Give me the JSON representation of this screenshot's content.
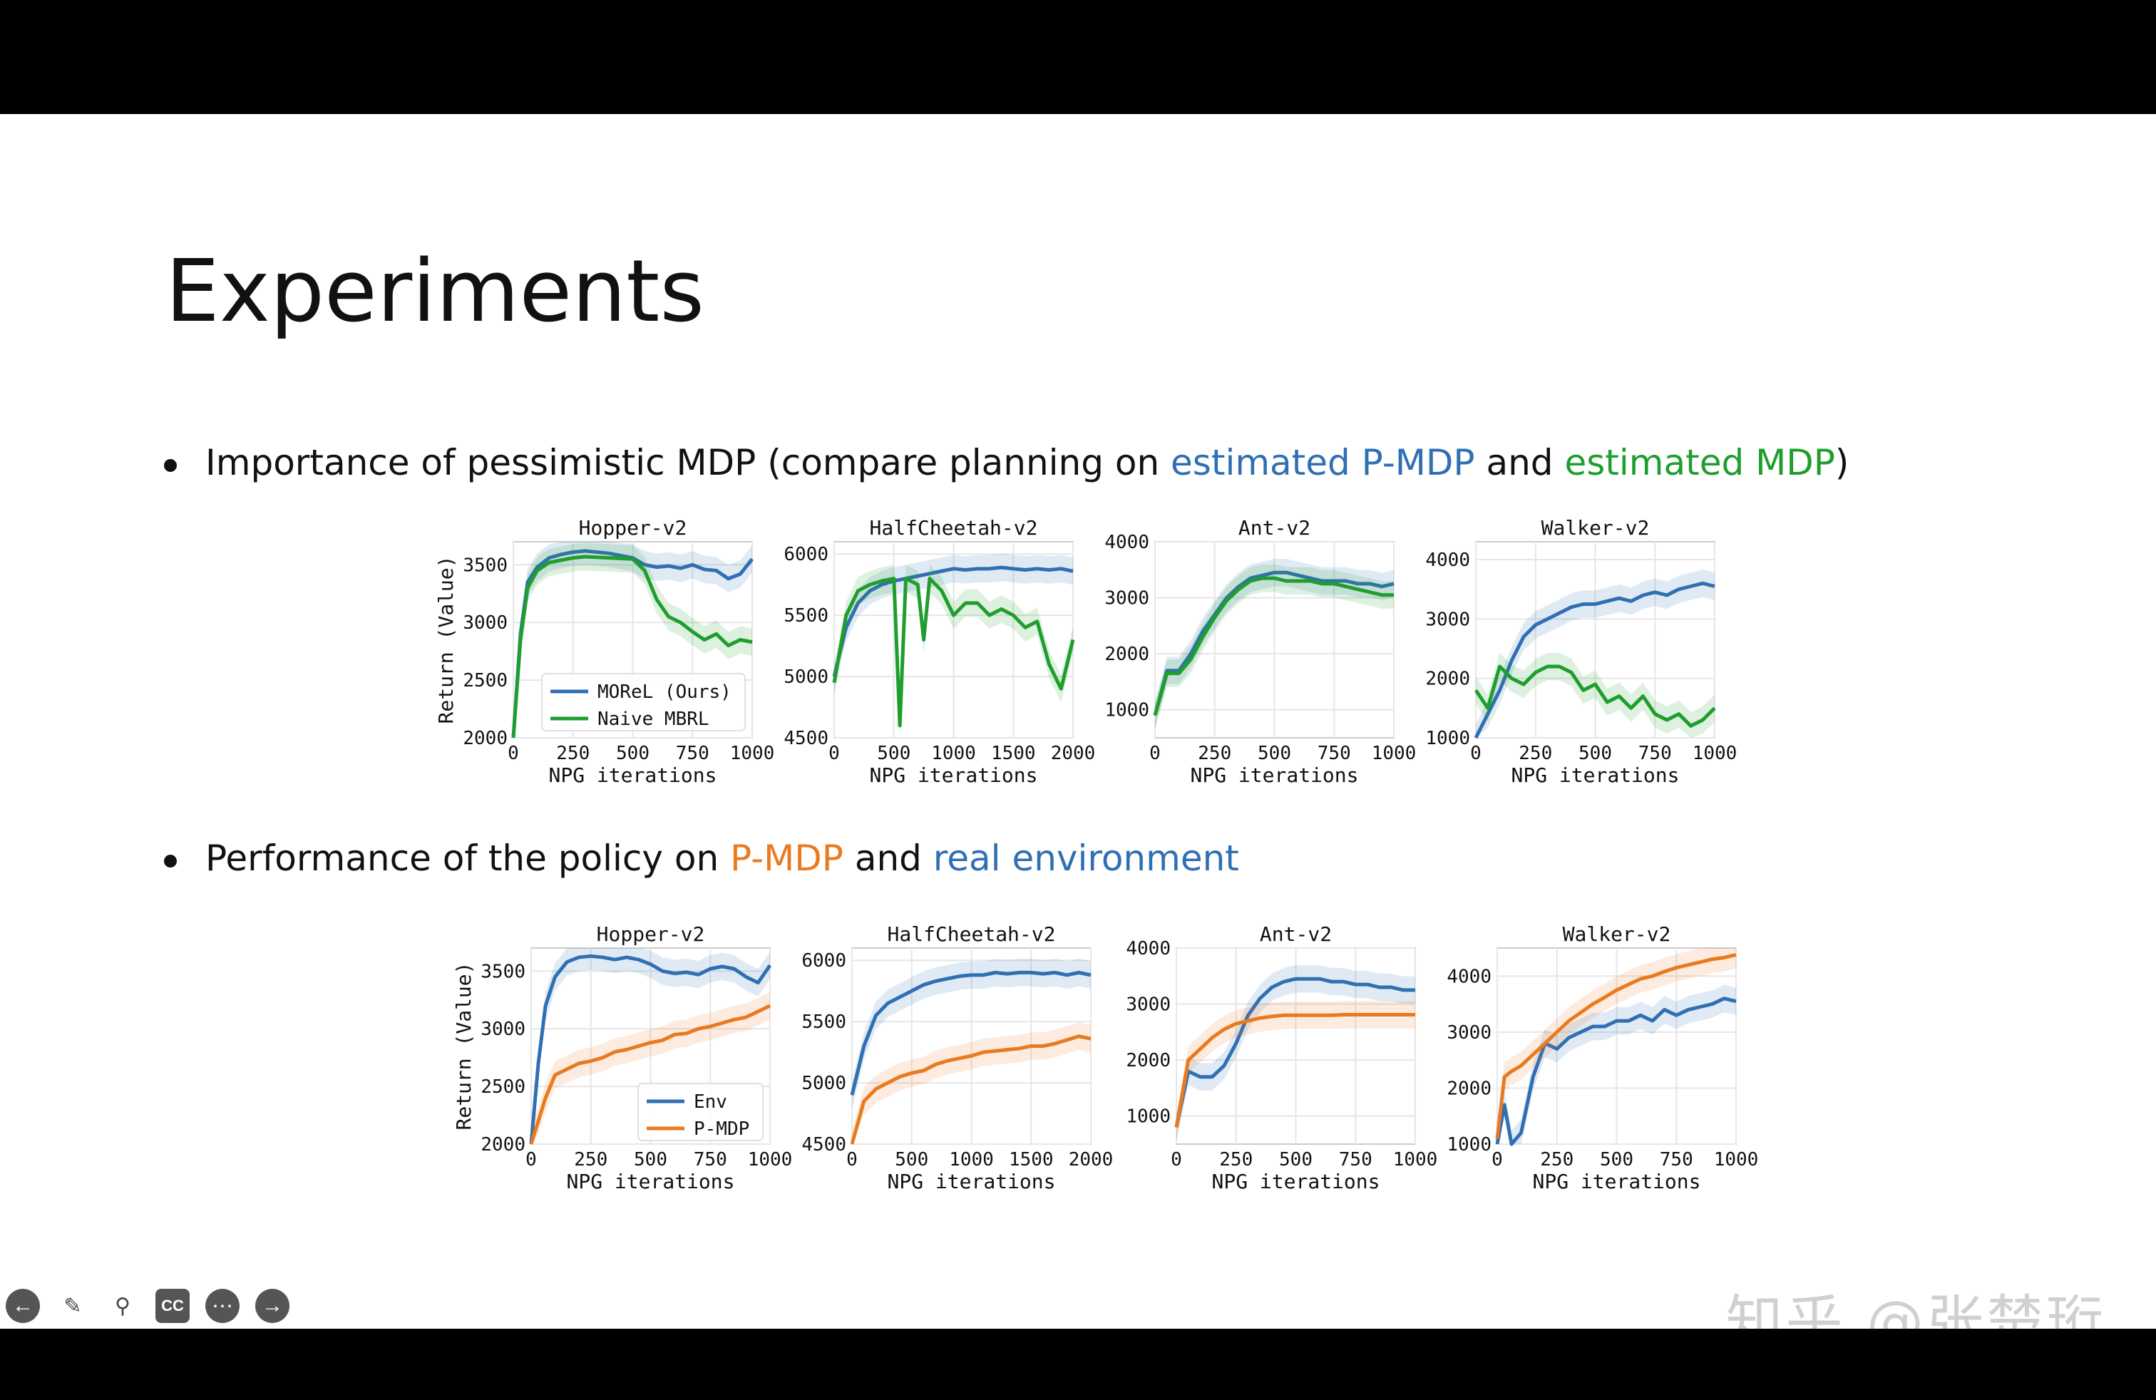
{
  "slide": {
    "title": "Experiments",
    "bullet1": {
      "prefix": "Importance of pessimistic MDP (compare planning on ",
      "highlight1": "estimated P-MDP",
      "middle": " and ",
      "highlight2": "estimated MDP",
      "suffix": ")"
    },
    "bullet2": {
      "prefix": "Performance of the policy on ",
      "highlight1": "P-MDP",
      "middle": " and ",
      "highlight2": "real environment"
    }
  },
  "toolbar": {
    "icons": [
      "arrow-left-icon",
      "pen-icon",
      "magnifier-icon",
      "cc-icon",
      "more-icon",
      "arrow-right-icon"
    ]
  },
  "watermark": "知乎 @张楚珩",
  "colors": {
    "blue": "#2f6fb3",
    "green": "#1f9e2d",
    "orange": "#ea7a1f"
  },
  "chart_data": [
    {
      "type": "line",
      "title": "Hopper-v2",
      "xlabel": "NPG iterations",
      "ylabel": "Return (Value)",
      "xlim": [
        0,
        1000
      ],
      "ylim": [
        2000,
        3700
      ],
      "xticks": [
        0,
        250,
        500,
        750,
        1000
      ],
      "yticks": [
        2000,
        2500,
        3000,
        3500
      ],
      "legend": [
        "MOReL (Ours)",
        "Naive MBRL"
      ],
      "series": [
        {
          "name": "MOReL (Ours)",
          "color": "#2f6fb3",
          "x": [
            0,
            30,
            60,
            100,
            150,
            200,
            250,
            300,
            400,
            500,
            550,
            600,
            650,
            700,
            750,
            800,
            850,
            900,
            950,
            1000
          ],
          "y": [
            2000,
            2900,
            3350,
            3480,
            3560,
            3590,
            3610,
            3620,
            3600,
            3560,
            3500,
            3480,
            3490,
            3470,
            3500,
            3460,
            3450,
            3380,
            3420,
            3550
          ]
        },
        {
          "name": "Naive MBRL",
          "color": "#1f9e2d",
          "x": [
            0,
            30,
            60,
            100,
            150,
            200,
            250,
            300,
            400,
            500,
            550,
            600,
            650,
            700,
            750,
            800,
            850,
            900,
            950,
            1000
          ],
          "y": [
            2000,
            2850,
            3300,
            3450,
            3520,
            3540,
            3560,
            3570,
            3560,
            3550,
            3450,
            3200,
            3050,
            3000,
            2920,
            2850,
            2900,
            2800,
            2850,
            2830
          ]
        }
      ]
    },
    {
      "type": "line",
      "title": "HalfCheetah-v2",
      "xlabel": "NPG iterations",
      "ylabel": "",
      "xlim": [
        0,
        2000
      ],
      "ylim": [
        4500,
        6100
      ],
      "xticks": [
        0,
        500,
        1000,
        1500,
        2000
      ],
      "yticks": [
        4500,
        5000,
        5500,
        6000
      ],
      "series": [
        {
          "name": "MOReL (Ours)",
          "color": "#2f6fb3",
          "x": [
            0,
            100,
            200,
            300,
            400,
            500,
            600,
            700,
            800,
            900,
            1000,
            1100,
            1200,
            1300,
            1400,
            1500,
            1600,
            1700,
            1800,
            1900,
            2000
          ],
          "y": [
            5000,
            5400,
            5600,
            5700,
            5750,
            5780,
            5800,
            5820,
            5840,
            5860,
            5880,
            5870,
            5880,
            5880,
            5890,
            5880,
            5870,
            5880,
            5870,
            5880,
            5860
          ]
        },
        {
          "name": "Naive MBRL",
          "color": "#1f9e2d",
          "x": [
            0,
            100,
            200,
            300,
            400,
            500,
            550,
            600,
            700,
            750,
            800,
            900,
            1000,
            1100,
            1200,
            1300,
            1400,
            1500,
            1600,
            1700,
            1800,
            1900,
            2000
          ],
          "y": [
            4950,
            5500,
            5700,
            5750,
            5780,
            5800,
            4600,
            5800,
            5750,
            5300,
            5800,
            5700,
            5500,
            5600,
            5600,
            5500,
            5550,
            5500,
            5400,
            5450,
            5100,
            4900,
            5300
          ]
        }
      ]
    },
    {
      "type": "line",
      "title": "Ant-v2",
      "xlabel": "NPG iterations",
      "ylabel": "",
      "xlim": [
        0,
        1000
      ],
      "ylim": [
        500,
        4000
      ],
      "xticks": [
        0,
        250,
        500,
        750,
        1000
      ],
      "yticks": [
        1000,
        2000,
        3000,
        4000
      ],
      "series": [
        {
          "name": "MOReL (Ours)",
          "color": "#2f6fb3",
          "x": [
            0,
            50,
            100,
            150,
            200,
            250,
            300,
            350,
            400,
            450,
            500,
            550,
            600,
            650,
            700,
            750,
            800,
            850,
            900,
            950,
            1000
          ],
          "y": [
            900,
            1700,
            1700,
            2000,
            2400,
            2700,
            3000,
            3200,
            3350,
            3400,
            3450,
            3450,
            3400,
            3350,
            3300,
            3300,
            3300,
            3250,
            3250,
            3200,
            3250
          ]
        },
        {
          "name": "Naive MBRL",
          "color": "#1f9e2d",
          "x": [
            0,
            50,
            100,
            150,
            200,
            250,
            300,
            350,
            400,
            450,
            500,
            550,
            600,
            650,
            700,
            750,
            800,
            850,
            900,
            950,
            1000
          ],
          "y": [
            900,
            1650,
            1650,
            1900,
            2300,
            2650,
            2950,
            3150,
            3300,
            3350,
            3350,
            3300,
            3300,
            3300,
            3250,
            3250,
            3200,
            3150,
            3100,
            3050,
            3050
          ]
        }
      ]
    },
    {
      "type": "line",
      "title": "Walker-v2",
      "xlabel": "NPG iterations",
      "ylabel": "",
      "xlim": [
        0,
        1000
      ],
      "ylim": [
        1000,
        4300
      ],
      "xticks": [
        0,
        250,
        500,
        750,
        1000
      ],
      "yticks": [
        1000,
        2000,
        3000,
        4000
      ],
      "series": [
        {
          "name": "MOReL (Ours)",
          "color": "#2f6fb3",
          "x": [
            0,
            50,
            100,
            150,
            200,
            250,
            300,
            350,
            400,
            450,
            500,
            550,
            600,
            650,
            700,
            750,
            800,
            850,
            900,
            950,
            1000
          ],
          "y": [
            1000,
            1400,
            1800,
            2300,
            2700,
            2900,
            3000,
            3100,
            3200,
            3250,
            3250,
            3300,
            3350,
            3300,
            3400,
            3450,
            3400,
            3500,
            3550,
            3600,
            3550
          ]
        },
        {
          "name": "Naive MBRL",
          "color": "#1f9e2d",
          "x": [
            0,
            50,
            100,
            150,
            200,
            250,
            300,
            350,
            400,
            450,
            500,
            550,
            600,
            650,
            700,
            750,
            800,
            850,
            900,
            950,
            1000
          ],
          "y": [
            1800,
            1500,
            2200,
            2000,
            1900,
            2100,
            2200,
            2200,
            2100,
            1800,
            1900,
            1600,
            1700,
            1500,
            1700,
            1400,
            1300,
            1400,
            1200,
            1300,
            1500
          ]
        }
      ]
    },
    {
      "type": "line",
      "title": "Hopper-v2",
      "xlabel": "NPG iterations",
      "ylabel": "Return (Value)",
      "xlim": [
        0,
        1000
      ],
      "ylim": [
        2000,
        3700
      ],
      "xticks": [
        0,
        250,
        500,
        750,
        1000
      ],
      "yticks": [
        2000,
        2500,
        3000,
        3500
      ],
      "legend": [
        "Env",
        "P-MDP"
      ],
      "series": [
        {
          "name": "Env",
          "color": "#2f6fb3",
          "x": [
            0,
            30,
            60,
            100,
            150,
            200,
            250,
            300,
            350,
            400,
            450,
            500,
            550,
            600,
            650,
            700,
            750,
            800,
            850,
            900,
            950,
            1000
          ],
          "y": [
            2000,
            2700,
            3200,
            3450,
            3580,
            3620,
            3630,
            3620,
            3600,
            3620,
            3600,
            3560,
            3500,
            3480,
            3490,
            3470,
            3520,
            3540,
            3520,
            3450,
            3400,
            3550
          ]
        },
        {
          "name": "P-MDP",
          "color": "#ea7a1f",
          "x": [
            0,
            30,
            60,
            100,
            150,
            200,
            250,
            300,
            350,
            400,
            450,
            500,
            550,
            600,
            650,
            700,
            750,
            800,
            850,
            900,
            950,
            1000
          ],
          "y": [
            2000,
            2200,
            2400,
            2600,
            2650,
            2700,
            2720,
            2750,
            2800,
            2820,
            2850,
            2880,
            2900,
            2950,
            2960,
            3000,
            3020,
            3050,
            3080,
            3100,
            3150,
            3200
          ]
        }
      ]
    },
    {
      "type": "line",
      "title": "HalfCheetah-v2",
      "xlabel": "NPG iterations",
      "ylabel": "",
      "xlim": [
        0,
        2000
      ],
      "ylim": [
        4500,
        6100
      ],
      "xticks": [
        0,
        500,
        1000,
        1500,
        2000
      ],
      "yticks": [
        4500,
        5000,
        5500,
        6000
      ],
      "series": [
        {
          "name": "Env",
          "color": "#2f6fb3",
          "x": [
            0,
            100,
            200,
            300,
            400,
            500,
            600,
            700,
            800,
            900,
            1000,
            1100,
            1200,
            1300,
            1400,
            1500,
            1600,
            1700,
            1800,
            1900,
            2000
          ],
          "y": [
            4900,
            5300,
            5550,
            5650,
            5700,
            5750,
            5800,
            5830,
            5850,
            5870,
            5880,
            5880,
            5900,
            5890,
            5900,
            5900,
            5890,
            5900,
            5880,
            5900,
            5880
          ]
        },
        {
          "name": "P-MDP",
          "color": "#ea7a1f",
          "x": [
            0,
            100,
            200,
            300,
            400,
            500,
            600,
            700,
            800,
            900,
            1000,
            1100,
            1200,
            1300,
            1400,
            1500,
            1600,
            1700,
            1800,
            1900,
            2000
          ],
          "y": [
            4500,
            4850,
            4950,
            5000,
            5050,
            5080,
            5100,
            5150,
            5180,
            5200,
            5220,
            5250,
            5260,
            5270,
            5280,
            5300,
            5300,
            5320,
            5350,
            5380,
            5360
          ]
        }
      ]
    },
    {
      "type": "line",
      "title": "Ant-v2",
      "xlabel": "NPG iterations",
      "ylabel": "",
      "xlim": [
        0,
        1000
      ],
      "ylim": [
        500,
        4000
      ],
      "xticks": [
        0,
        250,
        500,
        750,
        1000
      ],
      "yticks": [
        1000,
        2000,
        3000,
        4000
      ],
      "series": [
        {
          "name": "Env",
          "color": "#2f6fb3",
          "x": [
            0,
            50,
            100,
            150,
            200,
            250,
            300,
            350,
            400,
            450,
            500,
            550,
            600,
            650,
            700,
            750,
            800,
            850,
            900,
            950,
            1000
          ],
          "y": [
            800,
            1800,
            1700,
            1700,
            1900,
            2300,
            2800,
            3100,
            3300,
            3400,
            3450,
            3450,
            3450,
            3400,
            3400,
            3350,
            3350,
            3300,
            3300,
            3250,
            3250
          ]
        },
        {
          "name": "P-MDP",
          "color": "#ea7a1f",
          "x": [
            0,
            50,
            100,
            150,
            200,
            250,
            300,
            350,
            400,
            450,
            500,
            550,
            600,
            650,
            700,
            750,
            800,
            850,
            900,
            950,
            1000
          ],
          "y": [
            800,
            2000,
            2200,
            2400,
            2550,
            2650,
            2700,
            2750,
            2780,
            2800,
            2800,
            2800,
            2800,
            2800,
            2810,
            2810,
            2810,
            2810,
            2810,
            2810,
            2810
          ]
        }
      ]
    },
    {
      "type": "line",
      "title": "Walker-v2",
      "xlabel": "NPG iterations",
      "ylabel": "",
      "xlim": [
        0,
        1000
      ],
      "ylim": [
        1000,
        4500
      ],
      "xticks": [
        0,
        250,
        500,
        750,
        1000
      ],
      "yticks": [
        1000,
        2000,
        3000,
        4000
      ],
      "series": [
        {
          "name": "Env",
          "color": "#2f6fb3",
          "x": [
            0,
            30,
            60,
            100,
            150,
            200,
            250,
            300,
            350,
            400,
            450,
            500,
            550,
            600,
            650,
            700,
            750,
            800,
            850,
            900,
            950,
            1000
          ],
          "y": [
            1000,
            1700,
            1000,
            1200,
            2200,
            2800,
            2700,
            2900,
            3000,
            3100,
            3100,
            3200,
            3200,
            3300,
            3200,
            3400,
            3300,
            3400,
            3450,
            3500,
            3600,
            3550
          ]
        },
        {
          "name": "P-MDP",
          "color": "#ea7a1f",
          "x": [
            0,
            30,
            60,
            100,
            150,
            200,
            250,
            300,
            350,
            400,
            450,
            500,
            550,
            600,
            650,
            700,
            750,
            800,
            850,
            900,
            950,
            1000
          ],
          "y": [
            1100,
            2200,
            2300,
            2400,
            2600,
            2800,
            3000,
            3200,
            3350,
            3500,
            3620,
            3750,
            3850,
            3950,
            4000,
            4080,
            4150,
            4200,
            4250,
            4300,
            4330,
            4380
          ]
        }
      ]
    }
  ]
}
